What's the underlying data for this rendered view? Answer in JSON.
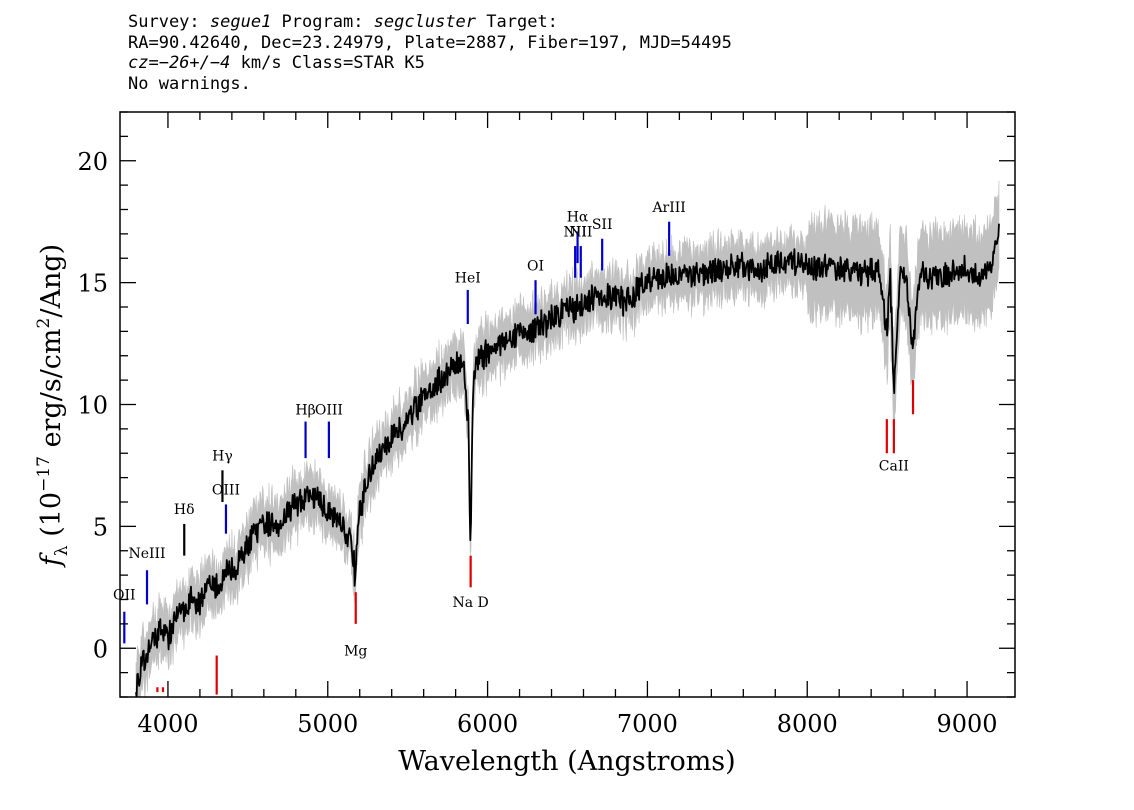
{
  "header": {
    "line1": {
      "survey_label": "Survey: ",
      "survey": "segue1",
      "program_label": " Program: ",
      "program": "segcluster",
      "target_label": " Target:"
    },
    "line2": "RA=90.42640, Dec=23.24979, Plate=2887, Fiber=197, MJD=54495",
    "line3": {
      "cz_label": "cz=",
      "cz_value": "−26+/−4",
      "cz_rest": " km/s Class=STAR K5"
    },
    "line4": "No warnings."
  },
  "chart_data": {
    "type": "line",
    "title": "",
    "xlabel": "Wavelength (Angstroms)",
    "ylabel_parts": {
      "f": "f",
      "sub": "λ",
      "open": " (10",
      "exp": "−17",
      "mid": " erg/s/cm",
      "exp2": "2",
      "close": "/Ang)"
    },
    "xlim": [
      3700,
      9300
    ],
    "ylim": [
      -2,
      22
    ],
    "xticks": [
      4000,
      5000,
      6000,
      7000,
      8000,
      9000
    ],
    "yticks": [
      0,
      5,
      10,
      15,
      20
    ],
    "grid": false,
    "colors": {
      "flux": "#000000",
      "error_band": "#c0c0c0",
      "emission": "#0000cc",
      "absorption": "#dd0000",
      "other": "#000000"
    },
    "series": [
      {
        "style": "spectrum",
        "x": [
          3800,
          3850,
          3900,
          3950,
          4000,
          4050,
          4100,
          4150,
          4200,
          4250,
          4300,
          4350,
          4400,
          4450,
          4500,
          4550,
          4600,
          4650,
          4700,
          4750,
          4800,
          4850,
          4900,
          4950,
          5000,
          5050,
          5100,
          5150,
          5170,
          5200,
          5250,
          5300,
          5350,
          5400,
          5450,
          5500,
          5550,
          5600,
          5650,
          5700,
          5750,
          5800,
          5850,
          5880,
          5893,
          5910,
          5950,
          6000,
          6050,
          6100,
          6150,
          6200,
          6250,
          6300,
          6350,
          6400,
          6450,
          6500,
          6550,
          6600,
          6650,
          6700,
          6750,
          6800,
          6850,
          6900,
          6950,
          7000,
          7100,
          7200,
          7300,
          7400,
          7500,
          7600,
          7700,
          7800,
          7900,
          8000,
          8100,
          8200,
          8300,
          8400,
          8450,
          8498,
          8520,
          8542,
          8580,
          8620,
          8662,
          8700,
          8800,
          8900,
          9000,
          9100,
          9150,
          9200
        ],
        "y": [
          -1.5,
          -0.6,
          0.3,
          0.8,
          0.5,
          1.2,
          1.6,
          2.1,
          1.9,
          2.6,
          2.4,
          3.0,
          3.2,
          3.6,
          4.2,
          4.8,
          4.9,
          5.2,
          5.1,
          5.7,
          5.9,
          6.0,
          6.3,
          6.1,
          5.6,
          5.4,
          5.0,
          4.2,
          3.0,
          5.5,
          7.0,
          7.7,
          8.1,
          8.6,
          9.0,
          9.4,
          9.9,
          10.3,
          10.6,
          11.0,
          11.3,
          11.6,
          11.7,
          9.0,
          3.8,
          11.2,
          11.9,
          12.2,
          12.4,
          12.6,
          12.8,
          12.9,
          12.9,
          13.1,
          13.3,
          13.5,
          13.8,
          14.1,
          13.9,
          14.2,
          14.4,
          14.3,
          14.4,
          14.5,
          14.2,
          14.3,
          14.9,
          15.0,
          15.2,
          15.3,
          15.4,
          15.4,
          15.6,
          15.7,
          15.5,
          15.7,
          15.8,
          15.7,
          15.6,
          15.6,
          15.4,
          15.5,
          15.4,
          13.0,
          15.3,
          10.2,
          15.3,
          15.2,
          12.0,
          15.2,
          15.3,
          15.4,
          15.5,
          15.3,
          15.6,
          17.2
        ],
        "noise_amplitude": 0.5
      }
    ],
    "spectral_lines": [
      {
        "label": "OII",
        "kind": "emission",
        "x": 3727,
        "y0": 0.2,
        "y1": 1.5,
        "label_y": 2.0
      },
      {
        "label": "NeIII",
        "kind": "emission",
        "x": 3869,
        "y0": 1.8,
        "y1": 3.2,
        "label_y": 3.7
      },
      {
        "label": "Hδ",
        "kind": "other",
        "x": 4102,
        "y0": 3.8,
        "y1": 5.1,
        "label_y": 5.5
      },
      {
        "label": "Hγ",
        "kind": "other",
        "x": 4341,
        "y0": 6.0,
        "y1": 7.3,
        "label_y": 7.7
      },
      {
        "label": "OIII",
        "kind": "emission",
        "x": 4363,
        "y0": 4.7,
        "y1": 5.9,
        "label_y": 6.3
      },
      {
        "label": "Hβ",
        "kind": "emission",
        "x": 4861,
        "y0": 7.8,
        "y1": 9.3,
        "label_y": 9.6
      },
      {
        "label": "OIII",
        "kind": "emission",
        "x": 5007,
        "y0": 7.8,
        "y1": 9.3,
        "label_y": 9.6
      },
      {
        "label": "HeI",
        "kind": "emission",
        "x": 5876,
        "y0": 13.3,
        "y1": 14.7,
        "label_y": 15.0
      },
      {
        "label": "OI",
        "kind": "emission",
        "x": 6300,
        "y0": 13.7,
        "y1": 15.1,
        "label_y": 15.5
      },
      {
        "label": "NII",
        "kind": "emission",
        "x": 6548,
        "y0": 15.2,
        "y1": 16.5,
        "label_y": 16.9
      },
      {
        "label": "Hα",
        "kind": "emission",
        "x": 6563,
        "y0": 15.8,
        "y1": 17.1,
        "label_y": 17.5
      },
      {
        "label": "NII",
        "kind": "emission",
        "x": 6583,
        "y0": 15.2,
        "y1": 16.5,
        "label_y": 16.9
      },
      {
        "label": "SII",
        "kind": "emission",
        "x": 6717,
        "y0": 15.5,
        "y1": 16.8,
        "label_y": 17.2
      },
      {
        "label": "ArIII",
        "kind": "emission",
        "x": 7136,
        "y0": 16.1,
        "y1": 17.5,
        "label_y": 17.9
      },
      {
        "label": "Mg",
        "kind": "absorption",
        "x": 5175,
        "y0": 1.0,
        "y1": 2.3,
        "label_y": -0.3
      },
      {
        "label": "Na D",
        "kind": "absorption",
        "x": 5894,
        "y0": 2.5,
        "y1": 3.8,
        "label_y": 1.7
      },
      {
        "label": "CaII",
        "kind": "absorption",
        "x": 8542,
        "y0": 8.0,
        "y1": 9.4,
        "label_y": 7.3
      },
      {
        "label": "",
        "kind": "absorption",
        "x": 4305,
        "y0": -1.9,
        "y1": -0.3
      },
      {
        "label": "",
        "kind": "absorption",
        "x": 8498,
        "y0": 8.0,
        "y1": 9.4
      },
      {
        "label": "",
        "kind": "absorption",
        "x": 8662,
        "y0": 9.6,
        "y1": 11.0
      },
      {
        "label": "",
        "kind": "absorption",
        "x": 3934,
        "y0": -1.8,
        "y1": -1.6
      },
      {
        "label": "",
        "kind": "absorption",
        "x": 3969,
        "y0": -1.8,
        "y1": -1.6
      }
    ]
  }
}
